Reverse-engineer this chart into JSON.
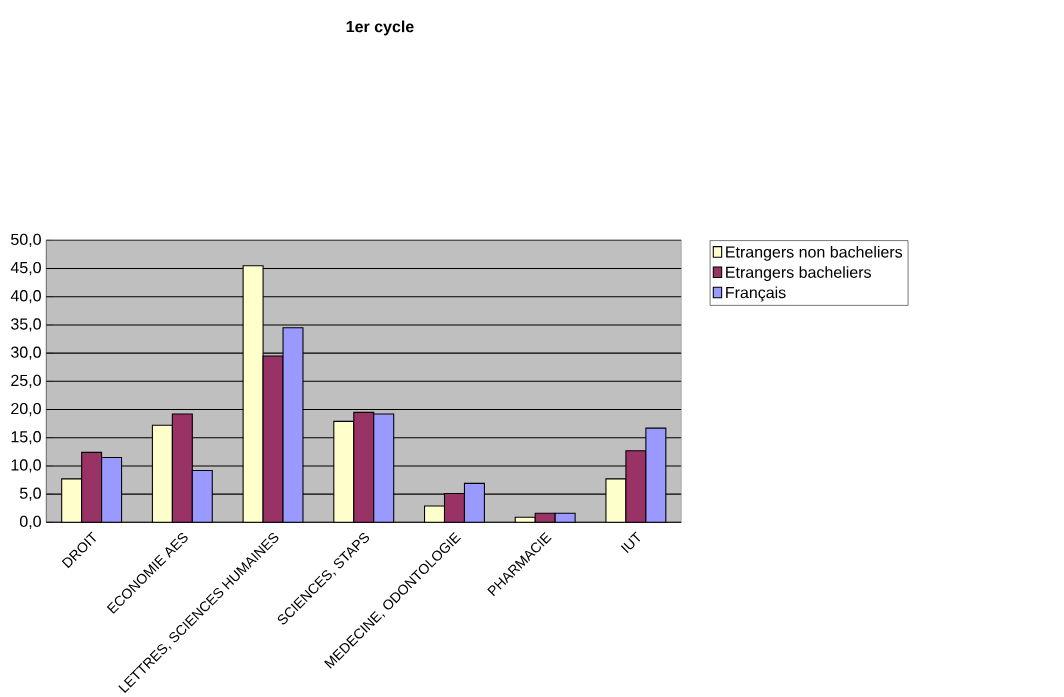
{
  "chart_data": {
    "type": "bar",
    "title": "1er cycle",
    "categories": [
      "DROIT",
      "ECONOMIE AES",
      "LETTRES, SCIENCES HUMAINES",
      "SCIENCES, STAPS",
      "MEDECINE, ODONTOLOGIE",
      "PHARMACIE",
      "IUT"
    ],
    "series": [
      {
        "name": "Etrangers non bacheliers",
        "color": "#ffffcc",
        "values": [
          7.7,
          17.2,
          45.5,
          17.9,
          2.9,
          0.9,
          7.7
        ]
      },
      {
        "name": "Etrangers bacheliers",
        "color": "#993366",
        "values": [
          12.4,
          19.2,
          29.5,
          19.5,
          5.1,
          1.6,
          12.7
        ]
      },
      {
        "name": "Français",
        "color": "#9999ff",
        "values": [
          11.5,
          9.2,
          34.5,
          19.2,
          6.9,
          1.6,
          16.7
        ]
      }
    ],
    "ylim": [
      0,
      50
    ],
    "yticks": [
      {
        "value": 0,
        "label": "0,0"
      },
      {
        "value": 5,
        "label": "5,0"
      },
      {
        "value": 10,
        "label": "10,0"
      },
      {
        "value": 15,
        "label": "15,0"
      },
      {
        "value": 20,
        "label": "20,0"
      },
      {
        "value": 25,
        "label": "25,0"
      },
      {
        "value": 30,
        "label": "30,0"
      },
      {
        "value": 35,
        "label": "35,0"
      },
      {
        "value": 40,
        "label": "40,0"
      },
      {
        "value": 45,
        "label": "45,0"
      },
      {
        "value": 50,
        "label": "50,0"
      }
    ],
    "grid": "y",
    "legend": "right"
  }
}
